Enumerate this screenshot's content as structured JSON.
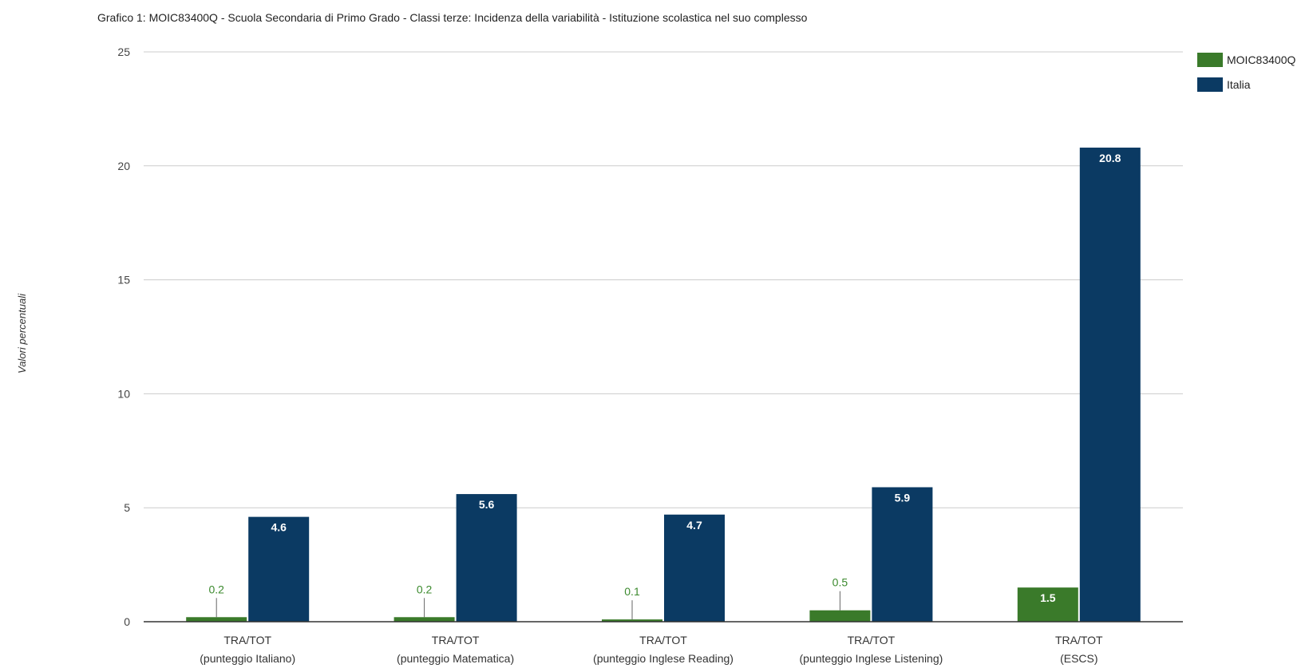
{
  "chart_data": {
    "type": "bar",
    "title": "Grafico 1: MOIC83400Q - Scuola Secondaria di Primo Grado - Classi terze: Incidenza della variabilità - Istituzione scolastica nel suo complesso",
    "ylabel": "Valori percentuali",
    "xlabel": "",
    "ylim": [
      0,
      25
    ],
    "yticks": [
      0,
      5,
      10,
      15,
      20,
      25
    ],
    "grid": true,
    "legend_position": "top-right",
    "categories": [
      [
        "TRA/TOT",
        "(punteggio Italiano)"
      ],
      [
        "TRA/TOT",
        "(punteggio Matematica)"
      ],
      [
        "TRA/TOT",
        "(punteggio Inglese Reading)"
      ],
      [
        "TRA/TOT",
        "(punteggio Inglese Listening)"
      ],
      [
        "TRA/TOT",
        "(ESCS)"
      ]
    ],
    "series": [
      {
        "name": "MOIC83400Q",
        "color": "#3a7a2a",
        "values": [
          0.2,
          0.2,
          0.1,
          0.5,
          1.5
        ]
      },
      {
        "name": "Italia",
        "color": "#0b3a63",
        "values": [
          4.6,
          5.6,
          4.7,
          5.9,
          20.8
        ]
      }
    ]
  }
}
